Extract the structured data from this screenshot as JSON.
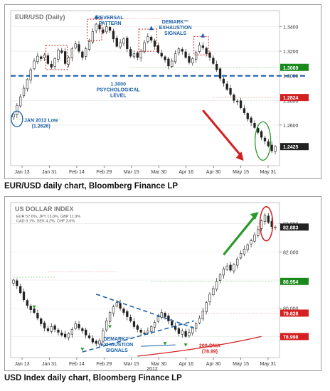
{
  "chart_data": [
    {
      "type": "candlestick",
      "title": "EUR/USD (Daily)",
      "caption": "EUR/USD daily chart, Bloomberg Finance LP",
      "x_labels": [
        "Jan 13",
        "Jan 31",
        "Feb 14",
        "Feb 29",
        "Mar 15",
        "Mar 30",
        "Apr 16",
        "Apr 30",
        "May 15",
        "May 31"
      ],
      "year_label": "",
      "y_ticks": [
        "1.3400",
        "1.3200",
        "1.3000",
        "1.2800",
        "1.2600"
      ],
      "ylim": [
        1.227,
        1.353
      ],
      "value_tags": [
        {
          "text": "1.3069",
          "value": 1.3069,
          "color": "#1a8a1a"
        },
        {
          "text": "1.2824",
          "value": 1.2824,
          "color": "#d42020"
        },
        {
          "text": "1.2425",
          "value": 1.2425,
          "color": "#222222"
        }
      ],
      "annotations": [
        "REVERSAL\nPATTERN",
        "DEMARK™\nEXHAUSTION\nSIGNALS",
        "1.3000\nPSYCHOLOGICAL\nLEVEL",
        "JAN 2012 Low\n(1.2626)"
      ],
      "series": [
        {
          "name": "",
          "close": [
            1.269,
            1.276,
            1.283,
            1.29,
            1.297,
            1.305,
            1.312,
            1.316,
            1.314,
            1.317,
            1.31,
            1.307,
            1.314,
            1.321,
            1.319,
            1.31,
            1.315,
            1.322,
            1.326,
            1.32,
            1.315,
            1.322,
            1.328,
            1.336,
            1.342,
            1.338,
            1.335,
            1.34,
            1.337,
            1.33,
            1.324,
            1.327,
            1.33,
            1.322,
            1.316,
            1.318,
            1.315,
            1.32,
            1.327,
            1.332,
            1.329,
            1.324,
            1.319,
            1.316,
            1.313,
            1.308,
            1.312,
            1.318,
            1.322,
            1.32,
            1.315,
            1.311,
            1.314,
            1.319,
            1.325,
            1.323,
            1.318,
            1.315,
            1.31,
            1.305,
            1.298,
            1.294,
            1.289,
            1.285,
            1.28,
            1.279,
            1.274,
            1.27,
            1.265,
            1.262,
            1.258,
            1.254,
            1.25,
            1.247,
            1.243,
            1.239,
            1.2425
          ]
        }
      ]
    },
    {
      "type": "candlestick",
      "title": "US DOLLAR INDEX",
      "subtitle": [
        "EUR 57.6%, JPY 13.6%, GBP 11.9%",
        "CAD 9.1%, SEK 4.2%, CHF 3.6%"
      ],
      "caption": "USD Index daily chart, Bloomberg Finance LP",
      "x_labels": [
        "Jan 13",
        "Jan 31",
        "Feb 14",
        "Feb 29",
        "Mar 15",
        "Mar 30",
        "Apr 16",
        "Apr 30",
        "May 15",
        "May 31"
      ],
      "year_label": "2012",
      "y_ticks": [
        "83.000",
        "82.000",
        "81.000",
        "80.000",
        "79.000"
      ],
      "ylim": [
        78.25,
        83.75
      ],
      "value_tags": [
        {
          "text": "82.883",
          "value": 82.883,
          "color": "#222222"
        },
        {
          "text": "80.954",
          "value": 80.954,
          "color": "#1a8a1a"
        },
        {
          "text": "79.828",
          "value": 79.828,
          "color": "#d42020"
        },
        {
          "text": "78.998",
          "value": 78.998,
          "color": "#d42020"
        }
      ],
      "annotations": [
        "DEMARK™\nEXHAUSTION\nSIGNALS",
        "200-DMA\n(78.99)"
      ],
      "series": [
        {
          "name": "",
          "close": [
            81.0,
            80.8,
            80.55,
            80.3,
            80.1,
            79.95,
            79.85,
            79.65,
            79.45,
            79.3,
            79.2,
            79.35,
            79.25,
            79.15,
            79.05,
            78.98,
            79.1,
            79.25,
            79.45,
            79.3,
            79.2,
            79.05,
            78.95,
            78.8,
            78.75,
            78.85,
            79.2,
            79.55,
            79.85,
            80.05,
            80.2,
            80.0,
            79.85,
            79.7,
            79.55,
            79.35,
            79.25,
            79.15,
            79.1,
            79.2,
            79.35,
            79.5,
            79.7,
            79.85,
            79.7,
            79.55,
            79.4,
            79.25,
            79.1,
            79.2,
            79.0,
            79.15,
            79.3,
            79.45,
            79.65,
            79.9,
            80.2,
            80.5,
            80.7,
            80.95,
            81.2,
            81.4,
            81.5,
            81.35,
            81.55,
            81.75,
            81.95,
            82.1,
            82.25,
            82.4,
            82.6,
            82.8,
            83.1,
            83.3,
            83.05,
            82.9,
            82.883
          ]
        }
      ]
    }
  ]
}
